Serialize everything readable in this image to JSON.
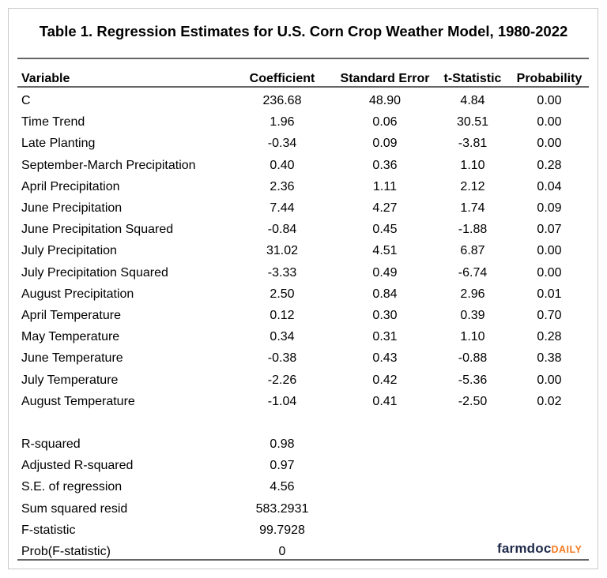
{
  "title": "Table 1. Regression Estimates for U.S. Corn Crop Weather Model, 1980-2022",
  "columns": [
    "Variable",
    "Coefficient",
    "Standard Error",
    "t-Statistic",
    "Probability"
  ],
  "rows": [
    [
      "C",
      "236.68",
      "48.90",
      "4.84",
      "0.00"
    ],
    [
      "Time Trend",
      "1.96",
      "0.06",
      "30.51",
      "0.00"
    ],
    [
      "Late Planting",
      "-0.34",
      "0.09",
      "-3.81",
      "0.00"
    ],
    [
      "September-March Precipitation",
      "0.40",
      "0.36",
      "1.10",
      "0.28"
    ],
    [
      "April Precipitation",
      "2.36",
      "1.11",
      "2.12",
      "0.04"
    ],
    [
      "June Precipitation",
      "7.44",
      "4.27",
      "1.74",
      "0.09"
    ],
    [
      "June Precipitation Squared",
      "-0.84",
      "0.45",
      "-1.88",
      "0.07"
    ],
    [
      "July Precipitation",
      "31.02",
      "4.51",
      "6.87",
      "0.00"
    ],
    [
      "July Precipitation Squared",
      "-3.33",
      "0.49",
      "-6.74",
      "0.00"
    ],
    [
      "August Precipitation",
      "2.50",
      "0.84",
      "2.96",
      "0.01"
    ],
    [
      "April Temperature",
      "0.12",
      "0.30",
      "0.39",
      "0.70"
    ],
    [
      "May Temperature",
      "0.34",
      "0.31",
      "1.10",
      "0.28"
    ],
    [
      "June Temperature",
      "-0.38",
      "0.43",
      "-0.88",
      "0.38"
    ],
    [
      "July Temperature",
      "-2.26",
      "0.42",
      "-5.36",
      "0.00"
    ],
    [
      "August Temperature",
      "-1.04",
      "0.41",
      "-2.50",
      "0.02"
    ]
  ],
  "stats": [
    [
      "R-squared",
      "0.98"
    ],
    [
      "Adjusted R-squared",
      "0.97"
    ],
    [
      "S.E. of regression",
      "4.56"
    ],
    [
      "Sum squared resid",
      "583.2931"
    ],
    [
      "F-statistic",
      "99.7928"
    ],
    [
      "Prob(F-statistic)",
      "0"
    ]
  ],
  "logo": {
    "part1": "farmdoc",
    "part2": "DAILY",
    "color1": "#1f2a4a",
    "color2": "#f47b20"
  }
}
